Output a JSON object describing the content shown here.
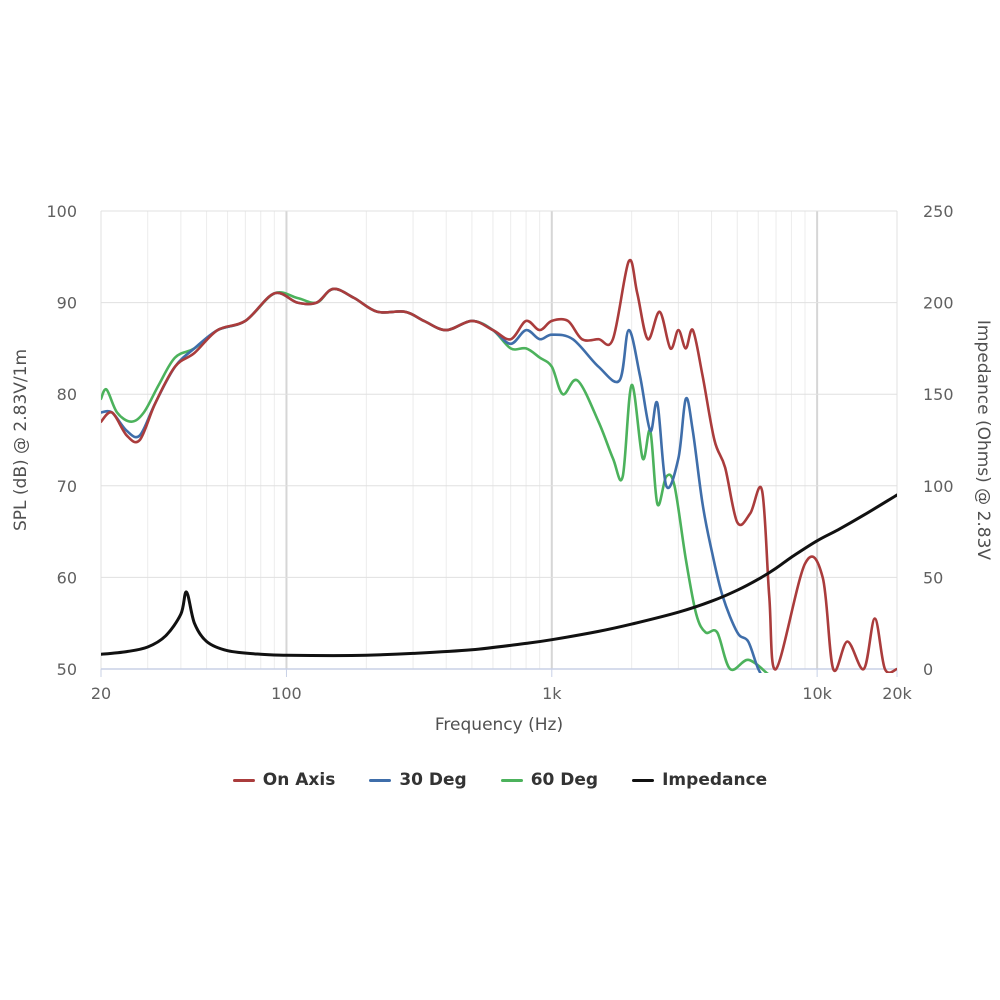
{
  "chart_data": {
    "type": "line",
    "xlabel": "Frequency (Hz)",
    "ylabel_left": "SPL (dB) @ 2.83V/1m",
    "ylabel_right": "Impedance (Ohms) @ 2.83V",
    "x_scale": "log",
    "xlim": [
      20,
      20000
    ],
    "ylim_left": [
      50,
      100
    ],
    "ylim_right": [
      0,
      250
    ],
    "x_ticks": [
      {
        "value": 20,
        "label": "20"
      },
      {
        "value": 100,
        "label": "100"
      },
      {
        "value": 1000,
        "label": "1k"
      },
      {
        "value": 10000,
        "label": "10k"
      },
      {
        "value": 20000,
        "label": "20k"
      }
    ],
    "y_ticks_left": [
      "50",
      "60",
      "70",
      "80",
      "90",
      "100"
    ],
    "y_ticks_right": [
      "0",
      "50",
      "100",
      "150",
      "200",
      "250"
    ],
    "grid": true,
    "legend_position": "bottom",
    "series": [
      {
        "name": "On Axis",
        "axis": "left",
        "color": "#aa3c3c",
        "points": [
          [
            20,
            77
          ],
          [
            22,
            78
          ],
          [
            25,
            75.5
          ],
          [
            28,
            75
          ],
          [
            32,
            79
          ],
          [
            38,
            83
          ],
          [
            45,
            84.5
          ],
          [
            55,
            87
          ],
          [
            70,
            88
          ],
          [
            90,
            91
          ],
          [
            110,
            90
          ],
          [
            130,
            90
          ],
          [
            150,
            91.5
          ],
          [
            180,
            90.5
          ],
          [
            220,
            89
          ],
          [
            280,
            89
          ],
          [
            330,
            88
          ],
          [
            400,
            87
          ],
          [
            500,
            88
          ],
          [
            600,
            87
          ],
          [
            700,
            86
          ],
          [
            800,
            88
          ],
          [
            900,
            87
          ],
          [
            1000,
            88
          ],
          [
            1150,
            88
          ],
          [
            1300,
            86
          ],
          [
            1500,
            86
          ],
          [
            1700,
            86
          ],
          [
            1950,
            94.5
          ],
          [
            2100,
            91
          ],
          [
            2300,
            86
          ],
          [
            2550,
            89
          ],
          [
            2800,
            85
          ],
          [
            3000,
            87
          ],
          [
            3200,
            85
          ],
          [
            3400,
            87
          ],
          [
            3700,
            82
          ],
          [
            4100,
            75
          ],
          [
            4500,
            72
          ],
          [
            5000,
            66
          ],
          [
            5600,
            67
          ],
          [
            6200,
            69.5
          ],
          [
            6600,
            58
          ],
          [
            7000,
            50
          ],
          [
            9000,
            61.5
          ],
          [
            10500,
            60
          ],
          [
            11500,
            50
          ],
          [
            13000,
            53
          ],
          [
            15000,
            50
          ],
          [
            16500,
            55.5
          ],
          [
            18000,
            50
          ],
          [
            20000,
            50
          ]
        ]
      },
      {
        "name": "30 Deg",
        "axis": "left",
        "color": "#3f6eaa",
        "points": [
          [
            20,
            78
          ],
          [
            22,
            78
          ],
          [
            25,
            76
          ],
          [
            28,
            75.5
          ],
          [
            32,
            79
          ],
          [
            38,
            83
          ],
          [
            45,
            85
          ],
          [
            55,
            87
          ],
          [
            70,
            88
          ],
          [
            90,
            91
          ],
          [
            110,
            90
          ],
          [
            130,
            90
          ],
          [
            150,
            91.5
          ],
          [
            180,
            90.5
          ],
          [
            220,
            89
          ],
          [
            280,
            89
          ],
          [
            330,
            88
          ],
          [
            400,
            87
          ],
          [
            500,
            88
          ],
          [
            600,
            87
          ],
          [
            700,
            85.5
          ],
          [
            800,
            87
          ],
          [
            900,
            86
          ],
          [
            1000,
            86.5
          ],
          [
            1200,
            86
          ],
          [
            1500,
            83
          ],
          [
            1800,
            81.5
          ],
          [
            1950,
            87
          ],
          [
            2150,
            82
          ],
          [
            2350,
            76
          ],
          [
            2500,
            79
          ],
          [
            2700,
            70
          ],
          [
            3000,
            73
          ],
          [
            3200,
            79.5
          ],
          [
            3400,
            76
          ],
          [
            3700,
            68
          ],
          [
            4000,
            63
          ],
          [
            4400,
            58
          ],
          [
            5000,
            54
          ],
          [
            5500,
            53
          ],
          [
            6000,
            50
          ],
          [
            6600,
            48
          ]
        ]
      },
      {
        "name": "60 Deg",
        "axis": "left",
        "color": "#4cb25c",
        "points": [
          [
            20,
            79.5
          ],
          [
            21,
            80.5
          ],
          [
            23,
            78
          ],
          [
            26,
            77
          ],
          [
            29,
            78
          ],
          [
            33,
            81
          ],
          [
            38,
            84
          ],
          [
            45,
            85
          ],
          [
            55,
            87
          ],
          [
            70,
            88
          ],
          [
            90,
            91
          ],
          [
            110,
            90.5
          ],
          [
            130,
            90
          ],
          [
            150,
            91.5
          ],
          [
            180,
            90.5
          ],
          [
            220,
            89
          ],
          [
            280,
            89
          ],
          [
            330,
            88
          ],
          [
            400,
            87
          ],
          [
            500,
            88
          ],
          [
            600,
            87
          ],
          [
            700,
            85
          ],
          [
            800,
            85
          ],
          [
            900,
            84
          ],
          [
            1000,
            83
          ],
          [
            1100,
            80
          ],
          [
            1250,
            81.5
          ],
          [
            1500,
            77
          ],
          [
            1700,
            73
          ],
          [
            1850,
            71
          ],
          [
            2000,
            81
          ],
          [
            2200,
            73
          ],
          [
            2350,
            76
          ],
          [
            2500,
            68
          ],
          [
            2700,
            71
          ],
          [
            2900,
            70
          ],
          [
            3200,
            62
          ],
          [
            3500,
            56
          ],
          [
            3800,
            54
          ],
          [
            4200,
            54
          ],
          [
            4700,
            50
          ],
          [
            5500,
            51
          ],
          [
            6500,
            49.5
          ]
        ]
      },
      {
        "name": "Impedance",
        "axis": "right",
        "color": "#111111",
        "points": [
          [
            20,
            8
          ],
          [
            25,
            9.5
          ],
          [
            30,
            12
          ],
          [
            35,
            18
          ],
          [
            40,
            30
          ],
          [
            42,
            42
          ],
          [
            45,
            25
          ],
          [
            50,
            15
          ],
          [
            60,
            10
          ],
          [
            80,
            8
          ],
          [
            100,
            7.5
          ],
          [
            150,
            7.3
          ],
          [
            200,
            7.5
          ],
          [
            300,
            8.5
          ],
          [
            500,
            10.5
          ],
          [
            800,
            14
          ],
          [
            1000,
            16
          ],
          [
            1500,
            20.5
          ],
          [
            2000,
            24.5
          ],
          [
            3000,
            31
          ],
          [
            4000,
            37
          ],
          [
            5000,
            43
          ],
          [
            6000,
            49
          ],
          [
            7000,
            55
          ],
          [
            8000,
            61
          ],
          [
            10000,
            70
          ],
          [
            12000,
            76
          ],
          [
            15000,
            84
          ],
          [
            20000,
            95
          ]
        ]
      }
    ]
  }
}
